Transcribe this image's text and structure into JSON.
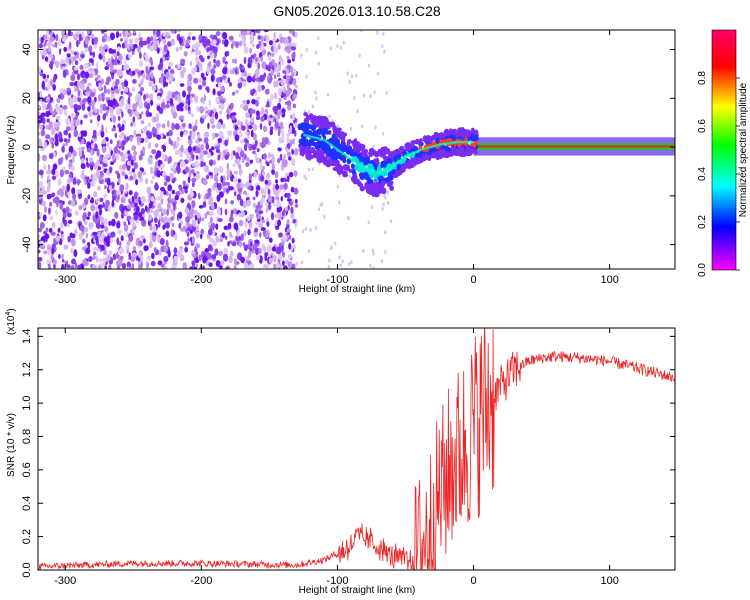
{
  "figure": {
    "title": "GN05.2026.013.10.58.C28"
  },
  "chart_data": [
    {
      "type": "heatmap",
      "xlabel": "Height of straight line (km)",
      "ylabel": "Frequency (Hz)",
      "xlim": [
        -320,
        148
      ],
      "ylim": [
        -50,
        48
      ],
      "x_ticks": [
        -300,
        -200,
        -100,
        0,
        100
      ],
      "y_ticks": [
        -40,
        -20,
        0,
        20,
        40
      ],
      "ridge_x": [
        -125,
        -110,
        -95,
        -82,
        -72,
        -62,
        -50,
        -38,
        -25,
        -12,
        0,
        10,
        50,
        100,
        148
      ],
      "ridge_y": [
        5,
        3,
        -3,
        -8,
        -11,
        -9,
        -4,
        -1,
        1,
        2,
        2,
        0.5,
        0.3,
        0.3,
        0.3
      ],
      "colorbar": {
        "label": "Normalized spectral amplitude",
        "range": [
          0,
          1
        ],
        "ticks": [
          "0.0",
          "0.2",
          "0.4",
          "0.6",
          "0.8"
        ],
        "colors": [
          "#ff00ff",
          "#0000ff",
          "#00ffff",
          "#00ff00",
          "#ffff00",
          "#ff0000",
          "#ff0066"
        ]
      }
    },
    {
      "type": "line",
      "xlabel": "Height of straight line (km)",
      "ylabel": "SNR (10 * v/v)",
      "y_multiplier": "(x10",
      "y_multiplier_exp": "4",
      "y_multiplier_close": ")",
      "xlim": [
        -320,
        148
      ],
      "ylim": [
        0,
        1.45
      ],
      "x_ticks": [
        -300,
        -200,
        -100,
        0,
        100
      ],
      "y_ticks": [
        "0.0",
        "0.2",
        "0.4",
        "0.6",
        "0.8",
        "1.0",
        "1.2",
        "1.4"
      ],
      "series": [
        {
          "name": "SNR",
          "color": "#ee2222",
          "x": [
            -320,
            -250,
            -200,
            -130,
            -110,
            -95,
            -85,
            -75,
            -60,
            -45,
            -35,
            -25,
            -15,
            -8,
            0,
            10,
            20,
            30,
            40,
            50,
            60,
            80,
            100,
            120,
            148
          ],
          "y": [
            0.02,
            0.04,
            0.04,
            0.03,
            0.06,
            0.12,
            0.2,
            0.17,
            0.08,
            0.05,
            0.2,
            0.45,
            0.65,
            0.72,
            0.85,
            1.0,
            1.1,
            1.2,
            1.25,
            1.27,
            1.28,
            1.27,
            1.25,
            1.21,
            1.15
          ]
        }
      ]
    }
  ]
}
